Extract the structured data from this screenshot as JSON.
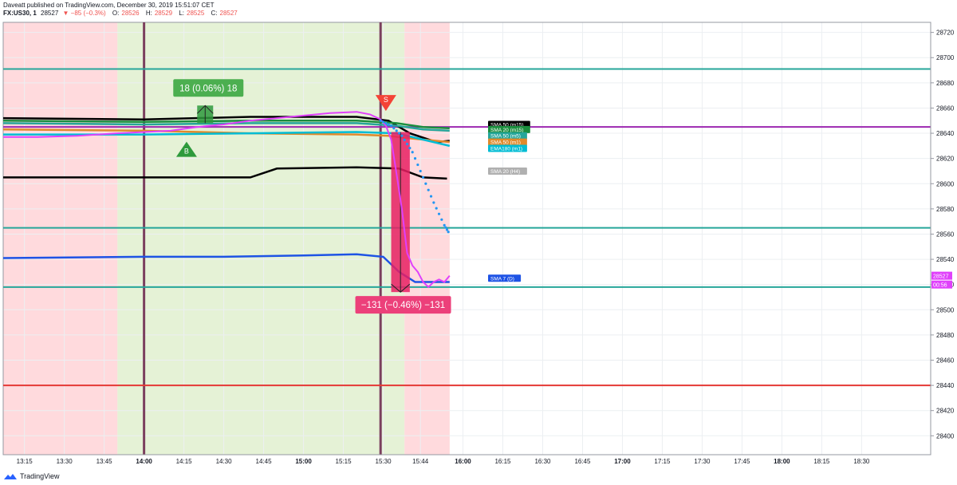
{
  "header": {
    "line1": "Daveatt published on TradingView.com, December 30, 2019 15:51:07 CET",
    "symbol": "FX:US30, 1",
    "last": "28527",
    "change": "−85 (−0.3%)",
    "o_label": "O:",
    "o_value": "28526",
    "h_label": "H:",
    "h_value": "28529",
    "l_label": "L:",
    "l_value": "28525",
    "c_label": "C:",
    "c_value": "28527"
  },
  "footer": {
    "brand": "TradingView"
  },
  "chart_data": {
    "type": "line",
    "x_ticks": [
      "13:15",
      "13:30",
      "13:45",
      "14:00",
      "14:15",
      "14:30",
      "14:45",
      "15:00",
      "15:15",
      "15:30",
      "15:44",
      "16:00",
      "16:15",
      "16:30",
      "16:45",
      "17:00",
      "17:15",
      "17:30",
      "17:45",
      "18:00",
      "18:15",
      "18:30"
    ],
    "y_ticks": [
      28400,
      28420,
      28440,
      28460,
      28480,
      28500,
      28520,
      28540,
      28560,
      28580,
      28600,
      28620,
      28640,
      28660,
      28680,
      28700,
      28720
    ],
    "ylim": [
      28385,
      28728
    ],
    "x_range_minutes": [
      787,
      1136
    ],
    "sessions": [
      {
        "start": 780,
        "end": 830,
        "color": "#ffcdd2"
      },
      {
        "start": 830,
        "end": 938,
        "color": "#dcedc8"
      },
      {
        "start": 938,
        "end": 955,
        "color": "#ffcdd2"
      }
    ],
    "vertical_lines": [
      {
        "t": 840,
        "color": "#7b3f5e"
      },
      {
        "t": 929,
        "color": "#7b3f5e"
      }
    ],
    "horizontal_lines": [
      {
        "y": 28691,
        "color": "#26a69a"
      },
      {
        "y": 28645,
        "color": "#9c27b0"
      },
      {
        "y": 28565,
        "color": "#26a69a"
      },
      {
        "y": 28518,
        "color": "#26a69a"
      },
      {
        "y": 28440,
        "color": "#e53935"
      }
    ],
    "series": [
      {
        "name": "SMA 20 (H4)",
        "color": "#000000",
        "x": [
          787,
          850,
          880,
          890,
          920,
          936,
          945,
          954
        ],
        "y": [
          28605,
          28605,
          28605,
          28612,
          28613,
          28612,
          28605,
          28604
        ]
      },
      {
        "name": "SMA 7 (D)",
        "color": "#1e53e5",
        "x": [
          787,
          840,
          870,
          900,
          920,
          930,
          936,
          942,
          955
        ],
        "y": [
          28541,
          28542,
          28542,
          28543,
          28544,
          28542,
          28530,
          28522,
          28522
        ]
      },
      {
        "name": "SMA 50 (m15)",
        "color": "#000000",
        "x": [
          787,
          840,
          880,
          920,
          932,
          940,
          950,
          955
        ],
        "y": [
          28652,
          28651,
          28653,
          28653,
          28650,
          28640,
          28633,
          28634
        ]
      },
      {
        "name": "SMA 20 (m15)",
        "color": "#1b8e3e",
        "x": [
          787,
          840,
          880,
          920,
          935,
          945,
          955
        ],
        "y": [
          28650,
          28649,
          28650,
          28650,
          28648,
          28645,
          28644
        ]
      },
      {
        "name": "SMA 50 (m5)",
        "color": "#26a69a",
        "x": [
          787,
          840,
          880,
          920,
          935,
          945,
          955
        ],
        "y": [
          28648,
          28647,
          28648,
          28648,
          28646,
          28643,
          28642
        ]
      },
      {
        "name": "SMA 50 (m1)",
        "color": "#e08a2c",
        "x": [
          787,
          840,
          880,
          920,
          932,
          940,
          955
        ],
        "y": [
          28643,
          28642,
          28640,
          28639,
          28638,
          28636,
          28633
        ]
      },
      {
        "name": "EMA180 (m1)",
        "color": "#00bcd4",
        "x": [
          787,
          840,
          880,
          920,
          935,
          945,
          955
        ],
        "y": [
          28639,
          28639,
          28640,
          28641,
          28640,
          28635,
          28630
        ]
      }
    ],
    "price": {
      "color": "#e040fb",
      "x": [
        787,
        800,
        815,
        830,
        840,
        850,
        860,
        870,
        880,
        890,
        900,
        910,
        920,
        925,
        929,
        931,
        933,
        935,
        937,
        939,
        941,
        943,
        945,
        947,
        949,
        951,
        953,
        955
      ],
      "y": [
        28637,
        28637,
        28638,
        28640,
        28641,
        28642,
        28645,
        28647,
        28650,
        28652,
        28654,
        28656,
        28657,
        28655,
        28651,
        28646,
        28635,
        28608,
        28580,
        28545,
        28535,
        28530,
        28522,
        28518,
        28522,
        28524,
        28522,
        28527
      ]
    },
    "projection": {
      "color": "#2196f3",
      "x": [
        929,
        933,
        937,
        941,
        945,
        949,
        953,
        955
      ],
      "y": [
        28650,
        28646,
        28638,
        28625,
        28605,
        28585,
        28567,
        28560
      ]
    },
    "trades": [
      {
        "type": "buy",
        "marker": "B",
        "t": 856,
        "y": 28627,
        "label": "18 (0.06%) 18",
        "box": {
          "t0": 860,
          "t1": 866,
          "y0": 28648,
          "y1": 28662
        }
      },
      {
        "type": "sell",
        "marker": "S",
        "t": 931,
        "y": 28664,
        "label": "−131 (−0.46%) −131",
        "box": {
          "t0": 933,
          "t1": 940,
          "y0": 28641,
          "y1": 28514
        }
      }
    ],
    "legend_labels": [
      {
        "text": "SMA 50 (m15)",
        "y": 28647,
        "color": "#000000"
      },
      {
        "text": "SMA 20 (m15)",
        "y": 28643,
        "color": "#1b8e3e"
      },
      {
        "text": "SMA 50 (m5)",
        "y": 28638,
        "color": "#26a69a"
      },
      {
        "text": "SMA 50 (m1)",
        "y": 28633,
        "color": "#e08a2c"
      },
      {
        "text": "EMA180 (m1)",
        "y": 28628,
        "color": "#00bcd4"
      },
      {
        "text": "SMA 20 (H4)",
        "y": 28610,
        "color": "#b0b0b0"
      },
      {
        "text": "SMA 7 (D)",
        "y": 28525,
        "color": "#1e53e5"
      }
    ],
    "price_tags": [
      {
        "text": "28527",
        "y": 28527,
        "color": "#e040fb"
      },
      {
        "text": "00:56",
        "y": 28520,
        "color": "#e040fb"
      }
    ]
  }
}
